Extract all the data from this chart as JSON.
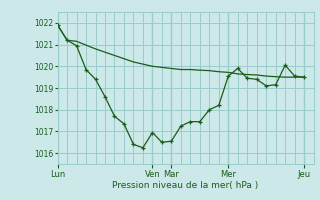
{
  "background_color": "#cce8e8",
  "plot_bg_color": "#cce8e8",
  "grid_color": "#99cccc",
  "line_color": "#1a5c1a",
  "xlabel": "Pression niveau de la mer( hPa )",
  "ylim": [
    1015.5,
    1022.5
  ],
  "yticks": [
    1016,
    1017,
    1018,
    1019,
    1020,
    1021,
    1022
  ],
  "day_labels": [
    "Lun",
    "Ven",
    "Mar",
    "Mer",
    "Jeu"
  ],
  "day_positions": [
    0,
    10,
    12,
    18,
    26
  ],
  "xlim": [
    0,
    27
  ],
  "series1_x": [
    0,
    1,
    2,
    4,
    6,
    8,
    10,
    12,
    13,
    14,
    15,
    16,
    17,
    18,
    19,
    20,
    21,
    22,
    23,
    24,
    25,
    26
  ],
  "series1_y": [
    1021.9,
    1021.2,
    1021.15,
    1020.8,
    1020.5,
    1020.2,
    1020.0,
    1019.9,
    1019.85,
    1019.85,
    1019.82,
    1019.8,
    1019.75,
    1019.72,
    1019.65,
    1019.62,
    1019.6,
    1019.55,
    1019.52,
    1019.5,
    1019.5,
    1019.5
  ],
  "series2_x": [
    0,
    1,
    2,
    3,
    4,
    5,
    6,
    7,
    8,
    9,
    10,
    11,
    12,
    13,
    14,
    15,
    16,
    17,
    18,
    19,
    20,
    21,
    22,
    23,
    24,
    25,
    26
  ],
  "series2_y": [
    1021.9,
    1021.2,
    1020.95,
    1019.85,
    1019.4,
    1018.6,
    1017.7,
    1017.35,
    1016.4,
    1016.25,
    1016.95,
    1016.5,
    1016.55,
    1017.25,
    1017.45,
    1017.45,
    1018.0,
    1018.2,
    1019.55,
    1019.9,
    1019.45,
    1019.4,
    1019.1,
    1019.15,
    1020.05,
    1019.55,
    1019.5
  ]
}
